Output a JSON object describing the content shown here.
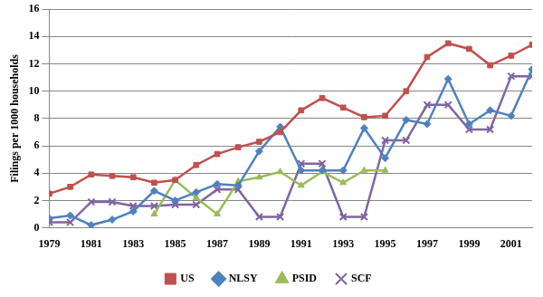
{
  "chart_data": {
    "type": "line",
    "y_label": "Filings per 1000 households",
    "categories": [
      "1979",
      null,
      "1981",
      null,
      "1983",
      null,
      "1985",
      null,
      "1987",
      null,
      "1989",
      null,
      "1991",
      null,
      "1993",
      null,
      "1995",
      null,
      "1997",
      null,
      "1999",
      null,
      "2001",
      null
    ],
    "series": [
      {
        "name": "US",
        "color": "#c0504d",
        "marker": "square",
        "values": [
          2.5,
          3.0,
          3.9,
          3.8,
          3.7,
          3.3,
          3.5,
          4.6,
          5.4,
          5.9,
          6.3,
          7.0,
          8.6,
          9.5,
          8.8,
          8.1,
          8.2,
          10.0,
          12.5,
          13.5,
          13.1,
          11.9,
          12.6,
          13.4
        ]
      },
      {
        "name": "NLSY",
        "color": "#4f81bd",
        "marker": "diamond",
        "values": [
          0.7,
          0.9,
          0.2,
          0.6,
          1.2,
          2.7,
          2.0,
          2.6,
          3.2,
          3.1,
          5.6,
          7.4,
          4.2,
          4.2,
          4.2,
          7.3,
          5.1,
          7.9,
          7.6,
          10.9,
          7.6,
          8.6,
          8.2,
          11.6
        ]
      },
      {
        "name": "PSID",
        "color": "#9bbb59",
        "marker": "triangle",
        "values": [
          null,
          null,
          null,
          null,
          null,
          1.0,
          3.5,
          2.2,
          1.0,
          3.4,
          3.7,
          4.1,
          3.1,
          4.1,
          3.3,
          4.2,
          4.2,
          null,
          null,
          null,
          null,
          null,
          null,
          null
        ]
      },
      {
        "name": "SCF",
        "color": "#8064a2",
        "marker": "x",
        "values": [
          0.4,
          0.4,
          1.9,
          1.9,
          1.6,
          1.6,
          1.7,
          1.7,
          2.8,
          2.8,
          0.8,
          0.8,
          4.7,
          4.7,
          0.8,
          0.8,
          6.4,
          6.4,
          9.0,
          9.0,
          7.2,
          7.2,
          11.1,
          11.1
        ]
      }
    ],
    "ylim": [
      0,
      16
    ],
    "yticks": [
      0,
      2,
      4,
      6,
      8,
      10,
      12,
      14,
      16
    ],
    "grid": true,
    "legend": "bottom"
  }
}
